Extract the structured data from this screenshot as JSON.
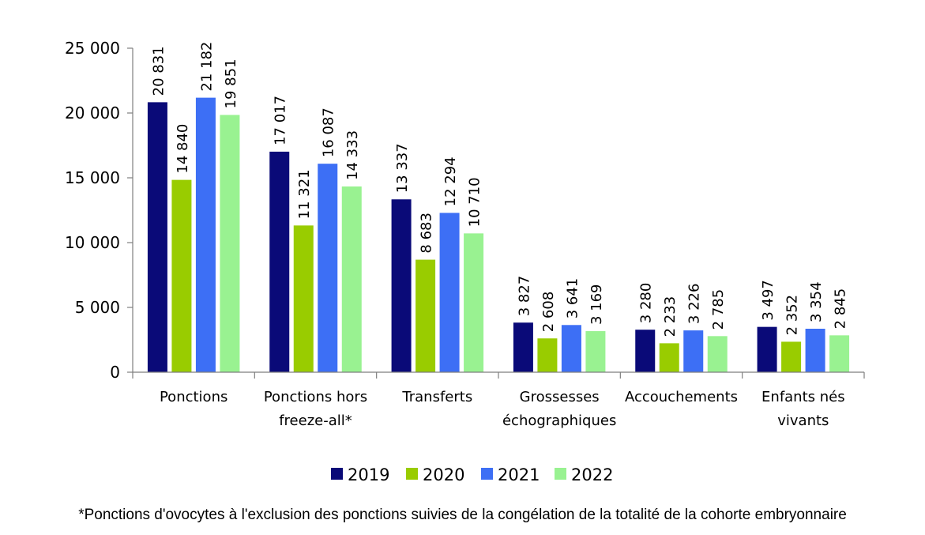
{
  "chart_data": {
    "type": "bar",
    "categories": [
      "Ponctions",
      "Ponctions hors freeze-all*",
      "Transferts",
      "Grossesses échographiques",
      "Accouchements",
      "Enfants nés vivants"
    ],
    "category_lines": [
      [
        "Ponctions"
      ],
      [
        "Ponctions hors",
        "freeze-all*"
      ],
      [
        "Transferts"
      ],
      [
        "Grossesses",
        "échographiques"
      ],
      [
        "Accouchements"
      ],
      [
        "Enfants nés",
        "vivants"
      ]
    ],
    "series": [
      {
        "name": "2019",
        "color": "#0a0a78",
        "values": [
          20831,
          17017,
          13337,
          3827,
          3280,
          3497
        ],
        "labels": [
          "20 831",
          "17 017",
          "13 337",
          "3 827",
          "3 280",
          "3 497"
        ]
      },
      {
        "name": "2020",
        "color": "#99cc00",
        "values": [
          14840,
          11321,
          8683,
          2608,
          2233,
          2352
        ],
        "labels": [
          "14 840",
          "11 321",
          "8 683",
          "2 608",
          "2 233",
          "2 352"
        ]
      },
      {
        "name": "2021",
        "color": "#3d6ff5",
        "values": [
          21182,
          16087,
          12294,
          3641,
          3226,
          3354
        ],
        "labels": [
          "21 182",
          "16 087",
          "12 294",
          "3 641",
          "3 226",
          "3 354"
        ]
      },
      {
        "name": "2022",
        "color": "#99f291",
        "values": [
          19851,
          14333,
          10710,
          3169,
          2785,
          2845
        ],
        "labels": [
          "19 851",
          "14 333",
          "10 710",
          "3 169",
          "2 785",
          "2 845"
        ]
      }
    ],
    "ylim": [
      0,
      25000
    ],
    "yticks": [
      0,
      5000,
      10000,
      15000,
      20000,
      25000
    ],
    "ytick_labels": [
      "0",
      "5 000",
      "10 000",
      "15 000",
      "20 000",
      "25 000"
    ],
    "legend_position": "bottom",
    "grid": false
  },
  "footnote": "*Ponctions d'ovocytes à l'exclusion des ponctions suivies de la congélation de la totalité de la cohorte embryonnaire"
}
